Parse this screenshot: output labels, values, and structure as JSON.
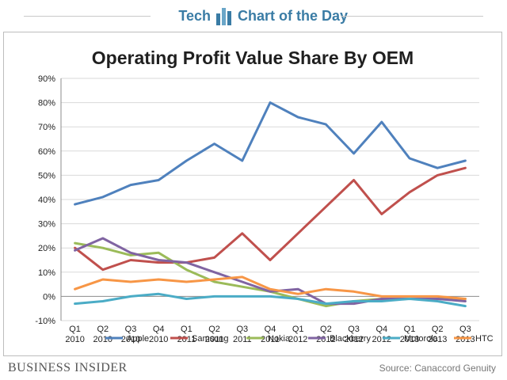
{
  "header": {
    "left_label": "Tech",
    "right_label": "Chart of the Day",
    "logo_icon": "bar-chart-icon"
  },
  "footer": {
    "brand": "BUSINESS INSIDER",
    "source": "Source: Canaccord Genuity"
  },
  "colors": {
    "header_text": "#3a7ca5",
    "Apple": "#4f81bd",
    "Samsung": "#c0504d",
    "Nokia": "#9bbb59",
    "Blackberry": "#8064a2",
    "Motorola": "#4bacc6",
    "HTC": "#f79646"
  },
  "chart_data": {
    "type": "line",
    "title": "Operating Profit Value Share By OEM",
    "xlabel": "",
    "ylabel": "",
    "ylim": [
      -10,
      90
    ],
    "yticks": [
      -10,
      0,
      10,
      20,
      30,
      40,
      50,
      60,
      70,
      80,
      90
    ],
    "ytick_labels": [
      "-10%",
      "0%",
      "10%",
      "20%",
      "30%",
      "40%",
      "50%",
      "60%",
      "70%",
      "80%",
      "90%"
    ],
    "grid": "horizontal",
    "legend_position": "bottom",
    "categories": [
      [
        "Q1",
        "2010"
      ],
      [
        "Q2",
        "2010"
      ],
      [
        "Q3",
        "2010"
      ],
      [
        "Q4",
        "2010"
      ],
      [
        "Q1",
        "2011"
      ],
      [
        "Q2",
        "2011"
      ],
      [
        "Q3",
        "2011"
      ],
      [
        "Q4",
        "2011"
      ],
      [
        "Q1",
        "2012"
      ],
      [
        "Q2",
        "2012"
      ],
      [
        "Q3",
        "2012"
      ],
      [
        "Q4",
        "2012"
      ],
      [
        "Q1",
        "2013"
      ],
      [
        "Q2",
        "2013"
      ],
      [
        "Q3",
        "2013"
      ]
    ],
    "series": [
      {
        "name": "Apple",
        "values": [
          38,
          41,
          46,
          48,
          56,
          63,
          56,
          80,
          74,
          71,
          59,
          72,
          57,
          53,
          56
        ]
      },
      {
        "name": "Samsung",
        "values": [
          20,
          11,
          15,
          14,
          14,
          16,
          26,
          15,
          26,
          37,
          48,
          34,
          43,
          50,
          53
        ]
      },
      {
        "name": "Nokia",
        "values": [
          22,
          20,
          17,
          18,
          11,
          6,
          4,
          2,
          -1,
          -4,
          -2,
          -1,
          -1,
          -1,
          -1
        ]
      },
      {
        "name": "Blackberry",
        "values": [
          19,
          24,
          18,
          15,
          14,
          10,
          6,
          2,
          3,
          -3,
          -3,
          -1,
          -1,
          -1,
          -2
        ]
      },
      {
        "name": "Motorola",
        "values": [
          -3,
          -2,
          0,
          1,
          -1,
          0,
          0,
          0,
          -1,
          -3,
          -2,
          -2,
          -1,
          -2,
          -4
        ]
      },
      {
        "name": "HTC",
        "values": [
          3,
          7,
          6,
          7,
          6,
          7,
          8,
          3,
          1,
          3,
          2,
          0,
          0,
          0,
          -1
        ]
      }
    ]
  }
}
